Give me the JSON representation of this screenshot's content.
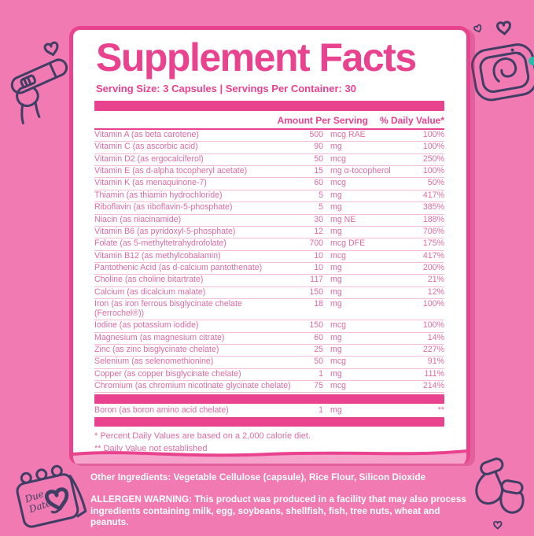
{
  "page": {
    "background_color": "#f07ab1",
    "accent_color": "#e9428e",
    "row_text_color": "#dd6ca4",
    "doodle_outline_color": "#403e65"
  },
  "label": {
    "title": "Supplement Facts",
    "serving_line": "Serving Size: 3 Capsules | Servings Per Container: 30",
    "columns": {
      "amount": "Amount Per Serving",
      "daily_value": "% Daily Value*"
    },
    "nutrients": [
      {
        "name": "Vitamin A (as beta carotene)",
        "amount": "500",
        "unit": "mcg RAE",
        "daily_value": "100%"
      },
      {
        "name": "Vitamin C (as ascorbic acid)",
        "amount": "90",
        "unit": "mg",
        "daily_value": "100%"
      },
      {
        "name": "Vitamin D2 (as ergocalciferol)",
        "amount": "50",
        "unit": "mcg",
        "daily_value": "250%"
      },
      {
        "name": "Vitamin E (as d-alpha tocopheryl acetate)",
        "amount": "15",
        "unit": "mg α-tocopherol",
        "daily_value": "100%"
      },
      {
        "name": "Vitamin K (as menaquinone-7)",
        "amount": "60",
        "unit": "mcg",
        "daily_value": "50%"
      },
      {
        "name": "Thiamin (as thiamin hydrochloride)",
        "amount": "5",
        "unit": "mg",
        "daily_value": "417%"
      },
      {
        "name": "Riboflavin (as riboflavin-5-phosphate)",
        "amount": "5",
        "unit": "mg",
        "daily_value": "385%"
      },
      {
        "name": "Niacin (as niacinamide)",
        "amount": "30",
        "unit": "mg NE",
        "daily_value": "188%"
      },
      {
        "name": "Vitamin B6 (as pyridoxyl-5-phosphate)",
        "amount": "12",
        "unit": "mg",
        "daily_value": "706%"
      },
      {
        "name": "Folate (as 5-methyltetrahydrofolate)",
        "amount": "700",
        "unit": "mcg DFE",
        "daily_value": "175%"
      },
      {
        "name": "Vitamin B12 (as methylcobalamin)",
        "amount": "10",
        "unit": "mcg",
        "daily_value": "417%"
      },
      {
        "name": "Pantothenic Acid (as d-calcium pantothenate)",
        "amount": "10",
        "unit": "mg",
        "daily_value": "200%"
      },
      {
        "name": "Choline (as choline bitartrate)",
        "amount": "117",
        "unit": "mg",
        "daily_value": "21%"
      },
      {
        "name": "Calcium (as dicalcium malate)",
        "amount": "150",
        "unit": "mg",
        "daily_value": "12%"
      },
      {
        "name": "Iron (as iron ferrous bisglycinate chelate (Ferrochel®))",
        "amount": "18",
        "unit": "mg",
        "daily_value": "100%"
      },
      {
        "name": "Iodine (as potassium iodide)",
        "amount": "150",
        "unit": "mcg",
        "daily_value": "100%"
      },
      {
        "name": "Magnesium (as magnesium citrate)",
        "amount": "60",
        "unit": "mg",
        "daily_value": "14%"
      },
      {
        "name": "Zinc (as zinc bisglycinate chelate)",
        "amount": "25",
        "unit": "mg",
        "daily_value": "227%"
      },
      {
        "name": "Selenium (as selenomethionine)",
        "amount": "50",
        "unit": "mcg",
        "daily_value": "91%"
      },
      {
        "name": "Copper (as copper bisglycinate chelate)",
        "amount": "1",
        "unit": "mg",
        "daily_value": "111%"
      },
      {
        "name": "Chromium (as chromium nicotinate glycinate chelate)",
        "amount": "75",
        "unit": "mcg",
        "daily_value": "214%"
      }
    ],
    "boron": {
      "name": "Boron (as boron amino acid chelate)",
      "amount": "1",
      "unit": "mg",
      "daily_value": "**"
    },
    "footnotes": [
      "* Percent Daily Values are based on a 2,000 calorie diet.",
      "** Daily Value not established"
    ]
  },
  "bottom": {
    "other_ingredients": "Other Ingredients: Vegetable Cellulose (capsule), Rice Flour, Silicon Dioxide",
    "allergen_warning": "ALLERGEN WARNING: This product was produced in a facility that may also process ingredients containing milk, egg, soybeans, shellfish, fish, tree nuts, wheat and peanuts."
  },
  "decorations": {
    "top_left_icon": "pregnancy-test-doodle",
    "top_right_icon": "ultrasound-doodle",
    "bottom_left_icon": "due-date-calendar-doodle",
    "bottom_right_icon": "baby-booties-doodle",
    "calendar_text_line1": "Due",
    "calendar_text_line2": "Date"
  }
}
